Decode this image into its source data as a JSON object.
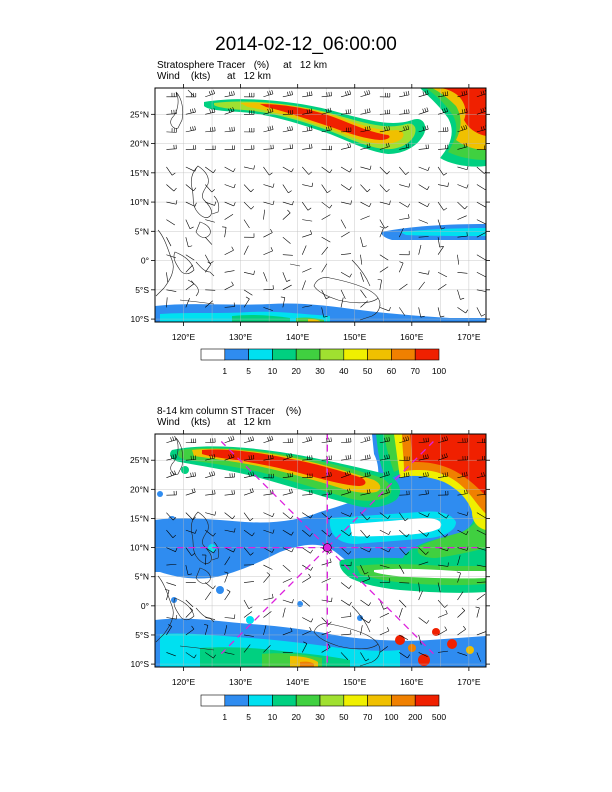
{
  "title": "2014-02-12_06:00:00",
  "colors": {
    "bins": [
      "#ffffff",
      "#2f8cf0",
      "#00e0f0",
      "#00d080",
      "#40d040",
      "#a0e030",
      "#f0f000",
      "#f0c000",
      "#f08000",
      "#f02000"
    ],
    "land_outline": "#222222",
    "grid": "#bbbbbb",
    "wind": "#000000",
    "track": "#dd22dd"
  },
  "panels": [
    {
      "name": "top",
      "field_title": "Stratosphere Tracer   (%)     at   12 km",
      "wind_title": "Wind    (kts)      at   12 km",
      "colorbar_labels": [
        "1",
        "5",
        "10",
        "20",
        "30",
        "40",
        "50",
        "60",
        "70",
        "100"
      ]
    },
    {
      "name": "bottom",
      "field_title": "8-14 km column ST Tracer    (%)",
      "wind_title": "Wind    (kts)      at   12 km",
      "colorbar_labels": [
        "1",
        "5",
        "10",
        "20",
        "30",
        "50",
        "70",
        "100",
        "200",
        "500"
      ],
      "storm_center": {
        "lon": 145.2,
        "lat": 10.0
      }
    }
  ],
  "axes": {
    "lon_range": [
      115,
      173
    ],
    "lat_range": [
      -10.5,
      29.5
    ],
    "lon_ticks": [
      {
        "value": 120,
        "label": "120°E"
      },
      {
        "value": 130,
        "label": "130°E"
      },
      {
        "value": 140,
        "label": "140°E"
      },
      {
        "value": 150,
        "label": "150°E"
      },
      {
        "value": 160,
        "label": "160°E"
      },
      {
        "value": 170,
        "label": "170°E"
      }
    ],
    "lat_ticks": [
      {
        "value": 25,
        "label": "25°N"
      },
      {
        "value": 20,
        "label": "20°N"
      },
      {
        "value": 15,
        "label": "15°N"
      },
      {
        "value": 10,
        "label": "10°N"
      },
      {
        "value": 5,
        "label": "5°N"
      },
      {
        "value": 0,
        "label": "0°"
      },
      {
        "value": -5,
        "label": "5°S"
      },
      {
        "value": -10,
        "label": "10°S"
      }
    ]
  }
}
